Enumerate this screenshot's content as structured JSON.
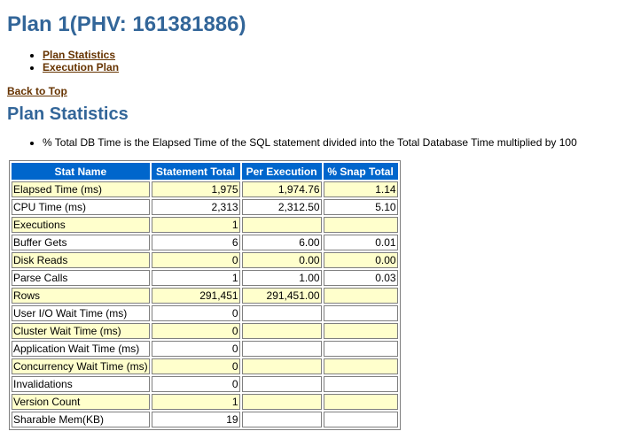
{
  "plan_title": "Plan 1(PHV: 161381886)",
  "nav_links": [
    "Plan Statistics",
    "Execution Plan"
  ],
  "back_to_top": "Back to Top",
  "section_title": "Plan Statistics",
  "note": "% Total DB Time is the Elapsed Time of the SQL statement divided into the Total Database Time multiplied by 100",
  "table": {
    "headers": [
      "Stat Name",
      "Statement Total",
      "Per Execution",
      "% Snap Total"
    ],
    "rows": [
      [
        "Elapsed Time (ms)",
        "1,975",
        "1,974.76",
        "1.14"
      ],
      [
        "CPU Time (ms)",
        "2,313",
        "2,312.50",
        "5.10"
      ],
      [
        "Executions",
        "1",
        "",
        ""
      ],
      [
        "Buffer Gets",
        "6",
        "6.00",
        "0.01"
      ],
      [
        "Disk Reads",
        "0",
        "0.00",
        "0.00"
      ],
      [
        "Parse Calls",
        "1",
        "1.00",
        "0.03"
      ],
      [
        "Rows",
        "291,451",
        "291,451.00",
        ""
      ],
      [
        "User I/O Wait Time (ms)",
        "0",
        "",
        ""
      ],
      [
        "Cluster Wait Time (ms)",
        "0",
        "",
        ""
      ],
      [
        "Application Wait Time (ms)",
        "0",
        "",
        ""
      ],
      [
        "Concurrency Wait Time (ms)",
        "0",
        "",
        ""
      ],
      [
        "Invalidations",
        "0",
        "",
        ""
      ],
      [
        "Version Count",
        "1",
        "",
        ""
      ],
      [
        "Sharable Mem(KB)",
        "19",
        "",
        ""
      ]
    ]
  },
  "colors": {
    "heading": "#336699",
    "link": "#663300",
    "header_bg": "#0066cc",
    "odd_row_bg": "#ffffcc",
    "even_row_bg": "#ffffff"
  }
}
